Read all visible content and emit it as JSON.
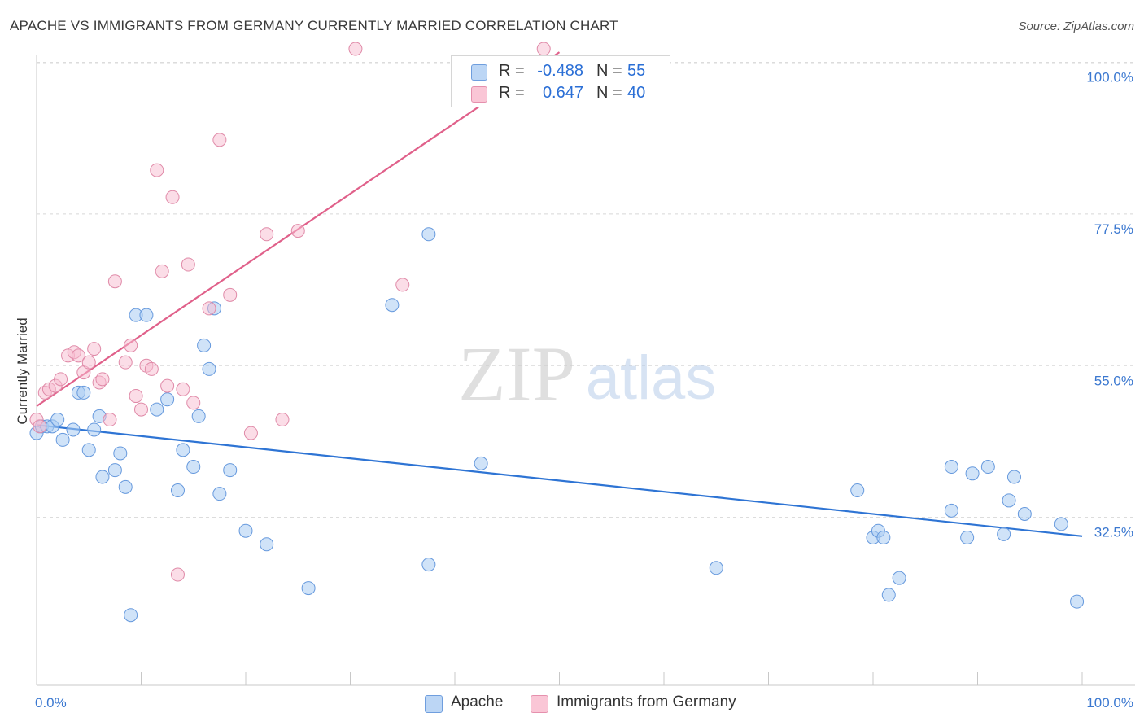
{
  "title": "APACHE VS IMMIGRANTS FROM GERMANY CURRENTLY MARRIED CORRELATION CHART",
  "source": "Source: ZipAtlas.com",
  "watermark": {
    "zip": "ZIP",
    "atlas": "atlas"
  },
  "legend": {
    "apache": {
      "r_label": "R =",
      "r_value": "-0.488",
      "n_label": "N =",
      "n_value": "55"
    },
    "germany": {
      "r_label": "R =",
      "r_value": "0.647",
      "n_label": "N =",
      "n_value": "40"
    }
  },
  "bottom_legend": {
    "apache": "Apache",
    "germany": "Immigrants from Germany"
  },
  "colors": {
    "apache_fill": "#aaccf3",
    "apache_stroke": "#6699dd",
    "apache_line": "#2e74d4",
    "germany_fill": "#f8bcd0",
    "germany_stroke": "#e08aa8",
    "germany_line": "#e0608a",
    "grid": "#d8d8d8",
    "tick_label": "#3b78d0"
  },
  "chart_data": {
    "type": "scatter",
    "title": "APACHE VS IMMIGRANTS FROM GERMANY CURRENTLY MARRIED CORRELATION CHART",
    "xlabel": "",
    "ylabel": "Currently Married",
    "xlim": [
      0,
      100
    ],
    "ylim": [
      10,
      102
    ],
    "x_tick_labels": [
      "0.0%",
      "100.0%"
    ],
    "y_ticks": [
      32.5,
      55.0,
      77.5,
      100.0
    ],
    "y_tick_labels": [
      "32.5%",
      "55.0%",
      "77.5%",
      "100.0%"
    ],
    "series": [
      {
        "name": "Apache",
        "trend": {
          "x": [
            0,
            100
          ],
          "y": [
            46.2,
            29.7
          ]
        },
        "points": [
          [
            0.0,
            45.0
          ],
          [
            0.5,
            46.0
          ],
          [
            1.0,
            46.0
          ],
          [
            1.5,
            46.0
          ],
          [
            2.0,
            47.0
          ],
          [
            2.5,
            44.0
          ],
          [
            3.5,
            45.5
          ],
          [
            4.0,
            51.0
          ],
          [
            4.5,
            51.0
          ],
          [
            5.0,
            42.5
          ],
          [
            5.5,
            45.5
          ],
          [
            6.0,
            47.5
          ],
          [
            6.3,
            38.5
          ],
          [
            7.5,
            39.5
          ],
          [
            8.0,
            42.0
          ],
          [
            8.5,
            37.0
          ],
          [
            9.0,
            18.0
          ],
          [
            9.5,
            62.5
          ],
          [
            10.5,
            62.5
          ],
          [
            11.5,
            48.5
          ],
          [
            12.5,
            50.0
          ],
          [
            13.5,
            36.5
          ],
          [
            14.0,
            42.5
          ],
          [
            15.0,
            40.0
          ],
          [
            15.5,
            47.5
          ],
          [
            16.0,
            58.0
          ],
          [
            16.5,
            54.5
          ],
          [
            17.0,
            63.5
          ],
          [
            17.5,
            36.0
          ],
          [
            18.5,
            39.5
          ],
          [
            20.0,
            30.5
          ],
          [
            22.0,
            28.5
          ],
          [
            26.0,
            22.0
          ],
          [
            34.0,
            64.0
          ],
          [
            37.5,
            74.5
          ],
          [
            37.5,
            25.5
          ],
          [
            42.5,
            40.5
          ],
          [
            65.0,
            25.0
          ],
          [
            78.5,
            36.5
          ],
          [
            80.0,
            29.5
          ],
          [
            80.5,
            30.5
          ],
          [
            81.0,
            29.5
          ],
          [
            81.5,
            21.0
          ],
          [
            82.5,
            23.5
          ],
          [
            87.5,
            40.0
          ],
          [
            87.5,
            33.5
          ],
          [
            89.0,
            29.5
          ],
          [
            89.5,
            39.0
          ],
          [
            91.0,
            40.0
          ],
          [
            92.5,
            30.0
          ],
          [
            93.0,
            35.0
          ],
          [
            93.5,
            38.5
          ],
          [
            94.5,
            33.0
          ],
          [
            98.0,
            31.5
          ],
          [
            99.5,
            20.0
          ]
        ]
      },
      {
        "name": "Immigrants from Germany",
        "trend": {
          "x": [
            0,
            50
          ],
          "y": [
            49.0,
            101.5
          ]
        },
        "points": [
          [
            0.0,
            47.0
          ],
          [
            0.3,
            46.0
          ],
          [
            0.8,
            51.0
          ],
          [
            1.2,
            51.5
          ],
          [
            1.8,
            52.0
          ],
          [
            2.3,
            53.0
          ],
          [
            3.0,
            56.5
          ],
          [
            3.6,
            57.0
          ],
          [
            4.0,
            56.5
          ],
          [
            4.5,
            54.0
          ],
          [
            5.0,
            55.5
          ],
          [
            5.5,
            57.5
          ],
          [
            6.0,
            52.5
          ],
          [
            6.3,
            53.0
          ],
          [
            7.0,
            47.0
          ],
          [
            7.5,
            67.5
          ],
          [
            8.5,
            55.5
          ],
          [
            9.0,
            58.0
          ],
          [
            9.5,
            50.5
          ],
          [
            10.0,
            48.5
          ],
          [
            10.5,
            55.0
          ],
          [
            11.0,
            54.5
          ],
          [
            11.5,
            84.0
          ],
          [
            12.0,
            69.0
          ],
          [
            12.5,
            52.0
          ],
          [
            13.0,
            80.0
          ],
          [
            13.5,
            24.0
          ],
          [
            14.0,
            51.5
          ],
          [
            14.5,
            70.0
          ],
          [
            15.0,
            49.5
          ],
          [
            16.5,
            63.5
          ],
          [
            17.5,
            88.5
          ],
          [
            18.5,
            65.5
          ],
          [
            20.5,
            45.0
          ],
          [
            22.0,
            74.5
          ],
          [
            23.5,
            47.0
          ],
          [
            25.0,
            75.0
          ],
          [
            30.5,
            102.0
          ],
          [
            35.0,
            67.0
          ],
          [
            48.5,
            102.0
          ]
        ]
      }
    ]
  }
}
